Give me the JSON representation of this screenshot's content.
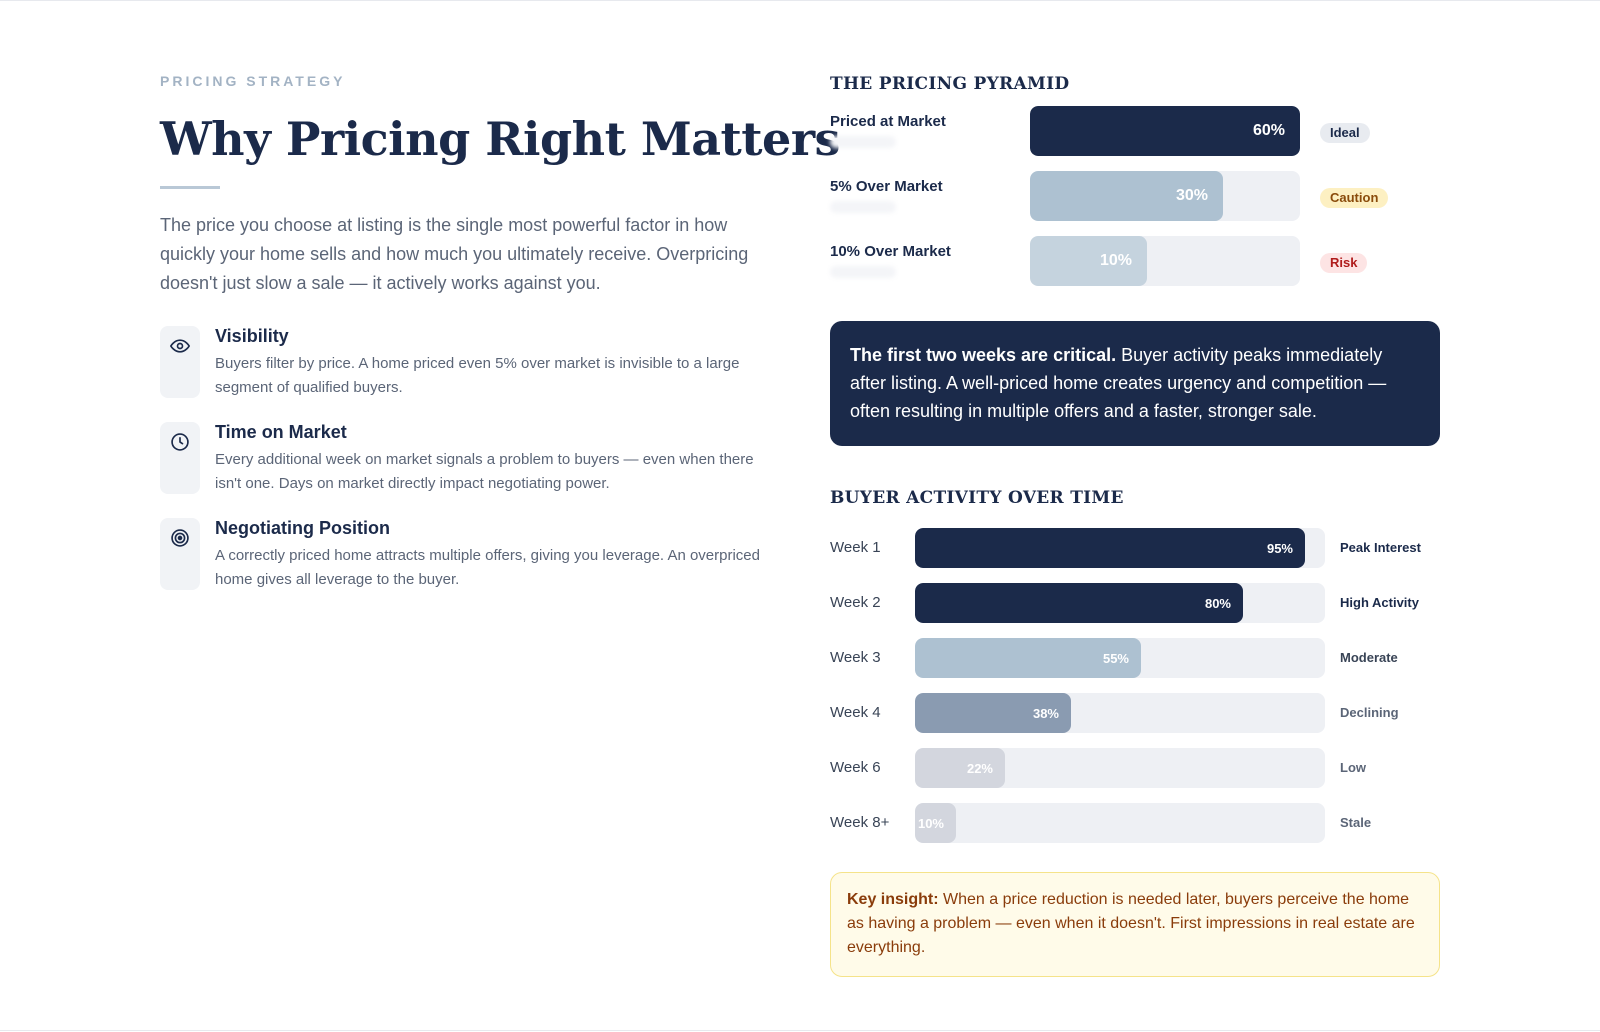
{
  "eyebrow": "PRICING STRATEGY",
  "headline": "Why Pricing Right Matters",
  "lede": "The price you choose at listing is the single most powerful factor in how quickly your home sells and how much you ultimately receive. Overpricing doesn't just slow a sale — it actively works against you.",
  "features": [
    {
      "icon": "eye-icon",
      "title": "Visibility",
      "desc": "Buyers filter by price. A home priced even 5% over market is invisible to a large segment of qualified buyers."
    },
    {
      "icon": "clock-icon",
      "title": "Time on Market",
      "desc": "Every additional week on market signals a problem to buyers — even when there isn't one. Days on market directly impact negotiating power."
    },
    {
      "icon": "target-icon",
      "title": "Negotiating Position",
      "desc": "A correctly priced home attracts multiple offers, giving you leverage. An overpriced home gives all leverage to the buyer."
    }
  ],
  "pyramid": {
    "title": "THE PRICING PYRAMID",
    "rows": [
      {
        "label": "Priced at Market",
        "value_label": "60%",
        "value": 60,
        "badge": "Ideal",
        "fill": "#1b2a4a",
        "text_color": "#ffffff",
        "badge_bg": "#e8ebf0",
        "badge_color": "#1b2a4a"
      },
      {
        "label": "5% Over Market",
        "value_label": "30%",
        "value": 30,
        "badge": "Caution",
        "fill": "#adc1d1",
        "text_color": "#ffffff",
        "badge_bg": "#fdf0c2",
        "badge_color": "#8a4b0b"
      },
      {
        "label": "10% Over Market",
        "value_label": "10%",
        "value": 10,
        "badge": "Risk",
        "fill": "#c5d3de",
        "text_color": "#ffffff",
        "badge_bg": "#fde4e4",
        "badge_color": "#b01c1c"
      }
    ]
  },
  "callout": {
    "lead": "The first two weeks are critical.",
    "body": " Buyer activity peaks immediately after listing. A well-priced home creates urgency and competition — often resulting in multiple offers and a faster, stronger sale."
  },
  "activity": {
    "title": "BUYER ACTIVITY OVER TIME",
    "rows": [
      {
        "week": "Week 1",
        "value_label": "95%",
        "value": 95,
        "status": "Peak Interest",
        "fill": "#1b2a4a",
        "status_color": "#1b2a4a"
      },
      {
        "week": "Week 2",
        "value_label": "80%",
        "value": 80,
        "status": "High Activity",
        "fill": "#1b2a4a",
        "status_color": "#1b2a4a"
      },
      {
        "week": "Week 3",
        "value_label": "55%",
        "value": 55,
        "status": "Moderate",
        "fill": "#adc1d1",
        "status_color": "#394456"
      },
      {
        "week": "Week 4",
        "value_label": "38%",
        "value": 38,
        "status": "Declining",
        "fill": "#8a9bb1",
        "status_color": "#5b6577"
      },
      {
        "week": "Week 6",
        "value_label": "22%",
        "value": 22,
        "status": "Low",
        "fill": "#d3d6de",
        "status_color": "#5b6577"
      },
      {
        "week": "Week 8+",
        "value_label": "10%",
        "value": 10,
        "status": "Stale",
        "fill": "#d3d6de",
        "status_color": "#5b6577"
      }
    ]
  },
  "insight": {
    "lead": "Key insight:",
    "body": " When a price reduction is needed later, buyers perceive the home as having a problem — even when it doesn't. First impressions in real estate are everything."
  },
  "chart_data": [
    {
      "type": "bar",
      "title": "THE PRICING PYRAMID",
      "categories": [
        "Priced at Market",
        "5% Over Market",
        "10% Over Market"
      ],
      "values": [
        60,
        30,
        10
      ],
      "value_labels": [
        "60%",
        "30%",
        "10%"
      ],
      "annotations": [
        "Ideal",
        "Caution",
        "Risk"
      ],
      "orientation": "horizontal",
      "xlim": [
        0,
        100
      ]
    },
    {
      "type": "bar",
      "title": "BUYER ACTIVITY OVER TIME",
      "categories": [
        "Week 1",
        "Week 2",
        "Week 3",
        "Week 4",
        "Week 6",
        "Week 8+"
      ],
      "values": [
        95,
        80,
        55,
        38,
        22,
        10
      ],
      "value_labels": [
        "95%",
        "80%",
        "55%",
        "38%",
        "22%",
        "10%"
      ],
      "annotations": [
        "Peak Interest",
        "High Activity",
        "Moderate",
        "Declining",
        "Low",
        "Stale"
      ],
      "orientation": "horizontal",
      "xlim": [
        0,
        100
      ]
    }
  ]
}
